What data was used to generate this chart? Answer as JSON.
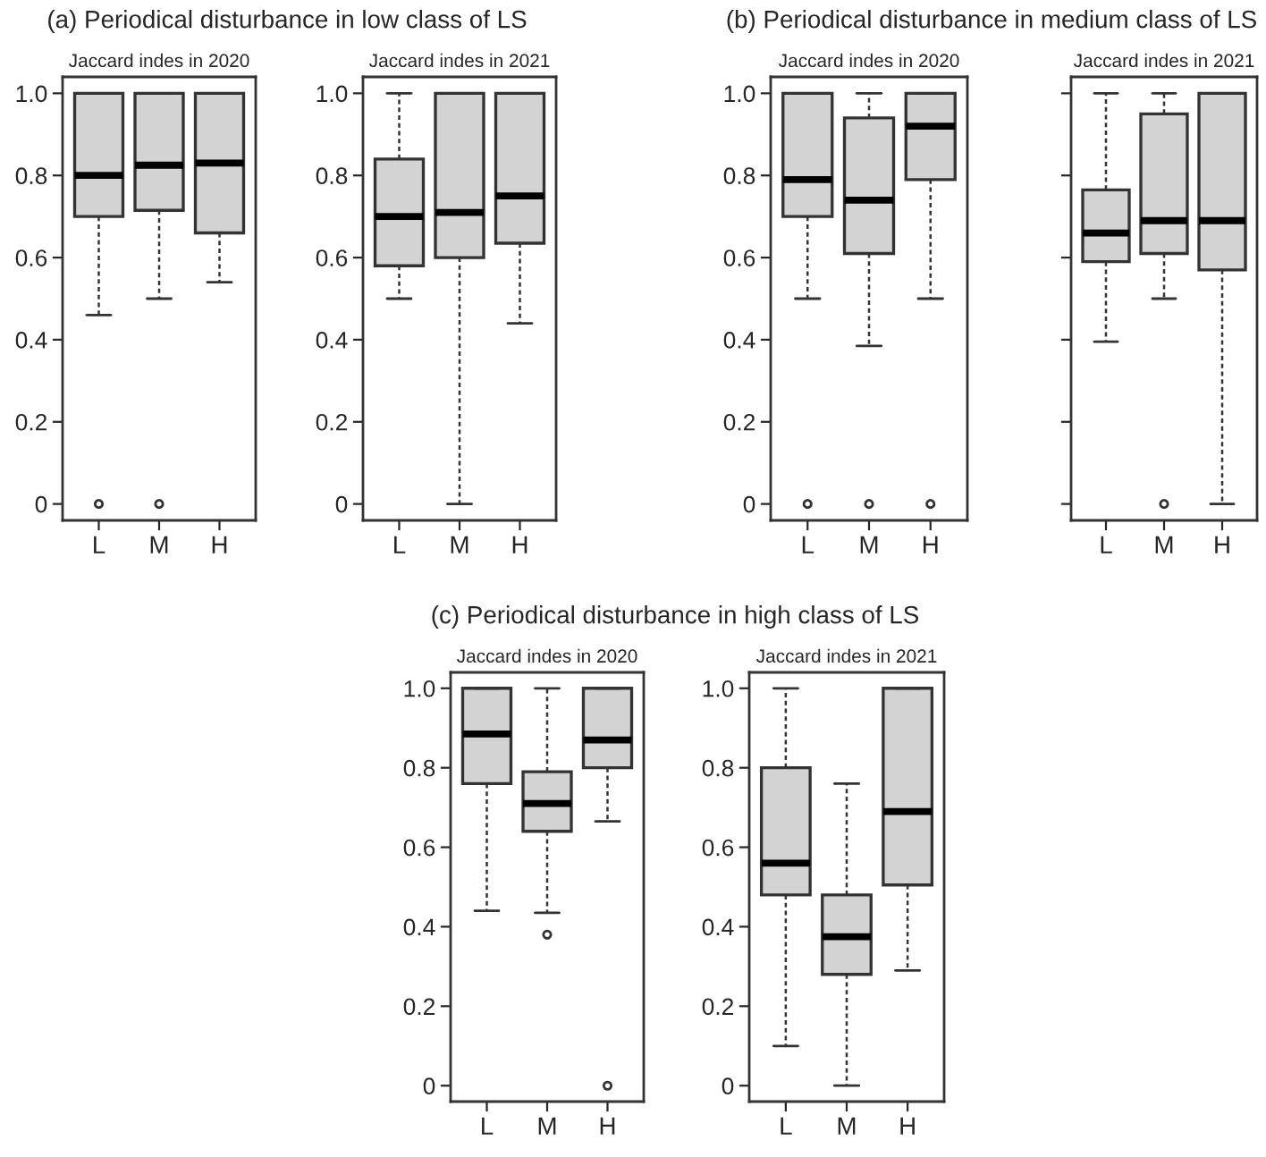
{
  "chart_data": [
    {
      "type": "box",
      "title": "Jaccard indes in 2020",
      "annotations": [
        "(a) Periodical disturbance in low class of LS"
      ],
      "categories": [
        "L",
        "M",
        "H"
      ],
      "ylim": [
        -0.04,
        1.04
      ],
      "yticks": [
        0,
        0.2,
        0.4,
        0.6,
        0.8,
        {
          "value": 1,
          "label": "1.0"
        }
      ],
      "series": [
        {
          "color": "#d3d3d3",
          "boxes": [
            {
              "low": 0.46,
              "q1": 0.7,
              "median": 0.8,
              "q3": 1.0,
              "high": 1.0,
              "outliers": [
                0
              ]
            },
            {
              "low": 0.5,
              "q1": 0.715,
              "median": 0.825,
              "q3": 1.0,
              "high": 1.0,
              "outliers": [
                0
              ]
            },
            {
              "low": 0.54,
              "q1": 0.66,
              "median": 0.83,
              "q3": 1.0,
              "high": 1.0
            }
          ]
        }
      ]
    },
    {
      "type": "box",
      "title": "Jaccard indes in 2021",
      "categories": [
        "L",
        "M",
        "H"
      ],
      "ylim": [
        -0.04,
        1.04
      ],
      "yticks": [
        0,
        0.2,
        0.4,
        0.6,
        0.8,
        {
          "value": 1,
          "label": "1.0"
        }
      ],
      "series": [
        {
          "color": "#d3d3d3",
          "boxes": [
            {
              "low": 0.5,
              "q1": 0.58,
              "median": 0.7,
              "q3": 0.84,
              "high": 1.0
            },
            {
              "low": 0,
              "q1": 0.6,
              "median": 0.71,
              "q3": 1.0,
              "high": 1.0
            },
            {
              "low": 0.44,
              "q1": 0.635,
              "median": 0.75,
              "q3": 1.0,
              "high": 1.0
            }
          ]
        }
      ]
    },
    {
      "type": "box",
      "title": "Jaccard indes in 2020",
      "annotations": [
        "(b) Periodical disturbance in medium class of LS"
      ],
      "categories": [
        "L",
        "M",
        "H"
      ],
      "ylim": [
        -0.04,
        1.04
      ],
      "yticks": [
        0,
        0.2,
        0.4,
        0.6,
        0.8,
        {
          "value": 1,
          "label": "1.0"
        }
      ],
      "series": [
        {
          "color": "#d3d3d3",
          "boxes": [
            {
              "low": 0.5,
              "q1": 0.7,
              "median": 0.79,
              "q3": 1.0,
              "high": 1.0,
              "outliers": [
                0
              ]
            },
            {
              "low": 0.385,
              "q1": 0.61,
              "median": 0.74,
              "q3": 0.94,
              "high": 1.0,
              "outliers": [
                0
              ]
            },
            {
              "low": 0.5,
              "q1": 0.79,
              "median": 0.92,
              "q3": 1.0,
              "high": 1.0,
              "outliers": [
                0
              ]
            }
          ]
        }
      ]
    },
    {
      "type": "box",
      "title": "Jaccard indes in 2021",
      "categories": [
        "L",
        "M",
        "H"
      ],
      "ylim": [
        -0.04,
        1.04
      ],
      "yticks": [
        {
          "value": 0,
          "label": null
        },
        {
          "value": 0.2,
          "label": null
        },
        {
          "value": 0.4,
          "label": null
        },
        {
          "value": 0.6,
          "label": null
        },
        {
          "value": 0.8,
          "label": null
        },
        {
          "value": 1,
          "label": null
        }
      ],
      "tick_labels": "x",
      "series": [
        {
          "color": "#d3d3d3",
          "boxes": [
            {
              "low": 0.395,
              "q1": 0.59,
              "median": 0.66,
              "q3": 0.765,
              "high": 1.0
            },
            {
              "low": 0.5,
              "q1": 0.61,
              "median": 0.69,
              "q3": 0.95,
              "high": 1.0,
              "outliers": [
                0
              ]
            },
            {
              "low": 0,
              "q1": 0.57,
              "median": 0.69,
              "q3": 1.0,
              "high": 1.0
            }
          ]
        }
      ]
    },
    {
      "type": "box",
      "title": "Jaccard indes in 2020",
      "annotations": [
        "(c) Periodical disturbance in high class of LS"
      ],
      "categories": [
        "L",
        "M",
        "H"
      ],
      "ylim": [
        -0.04,
        1.04
      ],
      "yticks": [
        0,
        0.2,
        0.4,
        0.6,
        0.8,
        {
          "value": 1,
          "label": "1.0"
        }
      ],
      "series": [
        {
          "color": "#d3d3d3",
          "boxes": [
            {
              "low": 0.44,
              "q1": 0.76,
              "median": 0.885,
              "q3": 1.0,
              "high": 1.0
            },
            {
              "low": 0.435,
              "q1": 0.64,
              "median": 0.71,
              "q3": 0.79,
              "high": 1.0,
              "outliers": [
                0.38
              ]
            },
            {
              "low": 0.665,
              "q1": 0.8,
              "median": 0.87,
              "q3": 1.0,
              "high": 1.0,
              "outliers": [
                0
              ]
            }
          ]
        }
      ]
    },
    {
      "type": "box",
      "title": "Jaccard indes in 2021",
      "categories": [
        "L",
        "M",
        "H"
      ],
      "ylim": [
        -0.04,
        1.04
      ],
      "yticks": [
        0,
        0.2,
        0.4,
        0.6,
        0.8,
        {
          "value": 1,
          "label": "1.0"
        }
      ],
      "series": [
        {
          "color": "#d3d3d3",
          "boxes": [
            {
              "low": 0.1,
              "q1": 0.48,
              "median": 0.56,
              "q3": 0.8,
              "high": 1.0
            },
            {
              "low": 0,
              "q1": 0.28,
              "median": 0.375,
              "q3": 0.48,
              "high": 0.76
            },
            {
              "low": 0.29,
              "q1": 0.505,
              "median": 0.69,
              "q3": 1.0,
              "high": 1.0
            }
          ]
        }
      ]
    }
  ]
}
